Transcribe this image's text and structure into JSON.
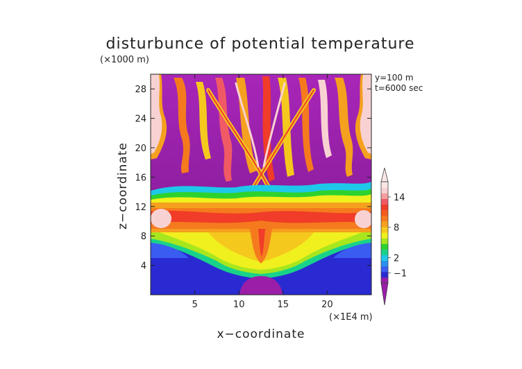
{
  "chart_data": {
    "type": "heatmap",
    "title": "disturbunce of potential temperature",
    "xlabel": "x−coordinate",
    "ylabel": "z−coordinate",
    "x_unit": "(×1E4 m)",
    "y_unit": "(×1000 m)",
    "annotations": [
      "y=100 m",
      "t=6000 sec"
    ],
    "xlim": [
      0,
      25
    ],
    "ylim": [
      0,
      30
    ],
    "x_ticks": [
      5,
      10,
      15,
      20
    ],
    "y_ticks": [
      4,
      8,
      12,
      16,
      20,
      24,
      28
    ],
    "colorbar_ticks": [
      -1,
      2,
      8,
      14
    ],
    "colorbar_range": [
      -3,
      17
    ],
    "colorbar_colors": [
      "#9a1ea8",
      "#2a2ad2",
      "#3a5cf0",
      "#2a90f0",
      "#1ec8e8",
      "#19d28a",
      "#2ed22e",
      "#a8e61e",
      "#f0f01e",
      "#f5c81e",
      "#f5a01e",
      "#f57a1e",
      "#f55a1e",
      "#f03c28",
      "#f05a64",
      "#f5a0a0",
      "#f8d2d2",
      "#fbe6e6"
    ],
    "grid": false,
    "legend": "right"
  }
}
